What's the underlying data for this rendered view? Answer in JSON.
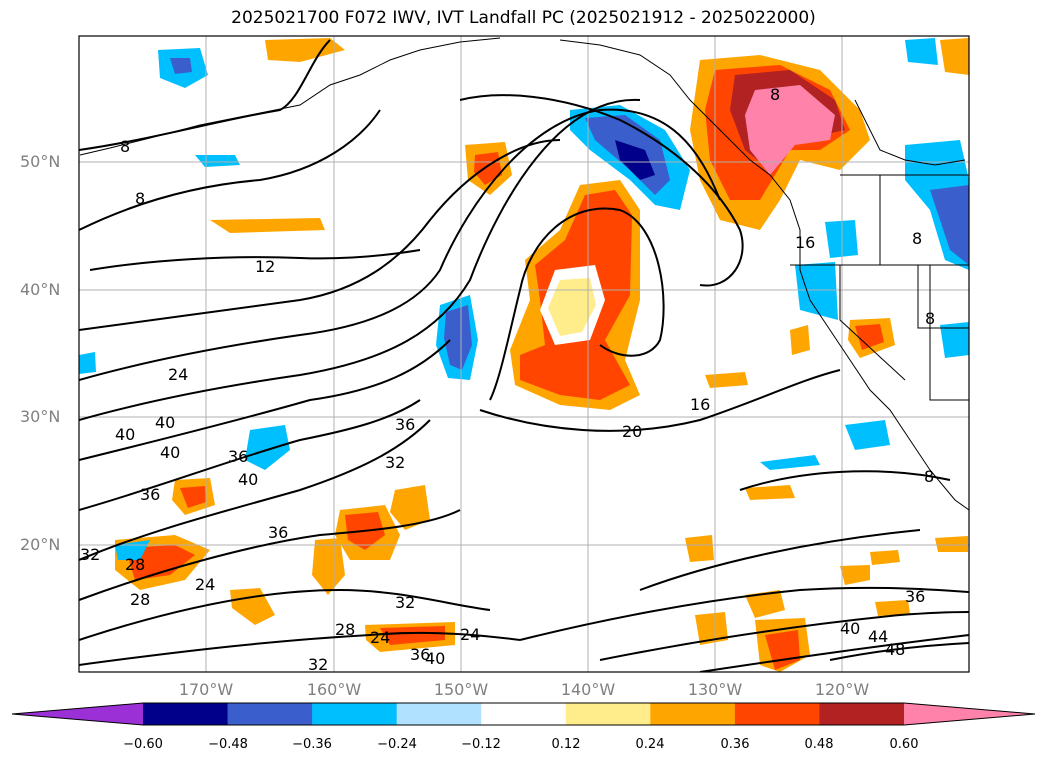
{
  "title": "2025021700 F072 IWV, IVT Landfall PC (2025021912 - 2025022000)",
  "latitude_labels": [
    "50°N",
    "40°N",
    "30°N",
    "20°N"
  ],
  "longitude_labels": [
    "170°W",
    "160°W",
    "150°W",
    "140°W",
    "130°W",
    "120°W"
  ],
  "colorbar": {
    "colors": [
      "#9b30d6",
      "#00008b",
      "#3a5fcd",
      "#00bfff",
      "#b0e2ff",
      "#ffffff",
      "#ffec8b",
      "#ffa500",
      "#ff4500",
      "#b22222",
      "#ff82ab"
    ],
    "tick_labels": [
      "−0.60",
      "−0.48",
      "−0.36",
      "−0.24",
      "−0.12",
      "0.12",
      "0.24",
      "0.36",
      "0.48",
      "0.60"
    ]
  },
  "contour_labels": [
    "8",
    "8",
    "12",
    "24",
    "40",
    "40",
    "40",
    "36",
    "36",
    "40",
    "36",
    "32",
    "36",
    "32",
    "28",
    "28",
    "24",
    "32",
    "28",
    "24",
    "24",
    "36",
    "40",
    "32",
    "20",
    "16",
    "8",
    "16",
    "8",
    "8",
    "8",
    "36",
    "40",
    "44",
    "48"
  ]
}
